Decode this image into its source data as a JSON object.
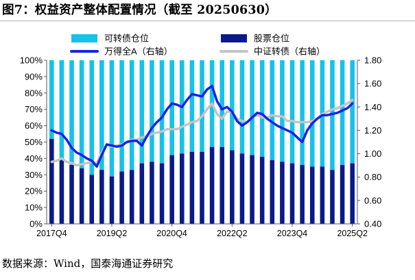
{
  "title": "图7：权益资产整体配置情况（截至 20250630）",
  "source": "数据来源：Wind，国泰海通证券研究",
  "colors": {
    "stock_bar": "#17c1ea",
    "bond_bar": "#0a1a8a",
    "wind_a_line": "#1524e6",
    "cb_index_line": "#c4c4c4",
    "axis": "#555555"
  },
  "chart_data": {
    "type": "bar",
    "stacked": true,
    "left_axis": {
      "ylim": [
        0,
        100
      ],
      "tick_labels": [
        "0%",
        "10%",
        "20%",
        "30%",
        "40%",
        "50%",
        "60%",
        "70%",
        "80%",
        "90%",
        "100%"
      ]
    },
    "right_axis": {
      "ylim": [
        0.4,
        1.8
      ],
      "tick_labels": [
        "0.40",
        "0.60",
        "0.80",
        "1.00",
        "1.20",
        "1.40",
        "1.60",
        "1.80"
      ]
    },
    "x_tick_labels": [
      "2017Q4",
      "2019Q2",
      "2020Q4",
      "2022Q2",
      "2023Q4",
      "2025Q2"
    ],
    "categories": [
      "2017Q4",
      "2018Q1",
      "2018Q2",
      "2018Q3",
      "2018Q4",
      "2019Q1",
      "2019Q2",
      "2019Q3",
      "2019Q4",
      "2020Q1",
      "2020Q2",
      "2020Q3",
      "2020Q4",
      "2021Q1",
      "2021Q2",
      "2021Q3",
      "2021Q4",
      "2022Q1",
      "2022Q2",
      "2022Q3",
      "2022Q4",
      "2023Q1",
      "2023Q2",
      "2023Q3",
      "2023Q4",
      "2024Q1",
      "2024Q2",
      "2024Q3",
      "2024Q4",
      "2025Q1",
      "2025Q2"
    ],
    "legend": [
      {
        "name": "可转债仓位",
        "kind": "bar"
      },
      {
        "name": "股票仓位",
        "kind": "bar"
      },
      {
        "name": "万得全A（右轴）",
        "kind": "line"
      },
      {
        "name": "中证转债（右轴）",
        "kind": "line"
      }
    ],
    "series": [
      {
        "name": "股票仓位",
        "axis": "left",
        "kind": "bar",
        "values": [
          52,
          40,
          36,
          34,
          30,
          33,
          29,
          32,
          33,
          37,
          38,
          37,
          42,
          43,
          44,
          44,
          47,
          47,
          45,
          43,
          42,
          41,
          39,
          38,
          37,
          36,
          35,
          35,
          33,
          36,
          37
        ]
      },
      {
        "name": "可转债仓位",
        "axis": "left",
        "kind": "bar",
        "values": [
          48,
          60,
          64,
          66,
          70,
          67,
          71,
          68,
          67,
          63,
          62,
          63,
          58,
          57,
          56,
          56,
          53,
          53,
          55,
          57,
          58,
          59,
          61,
          62,
          63,
          64,
          65,
          65,
          67,
          64,
          63
        ]
      },
      {
        "name": "万得全A（右轴）",
        "axis": "right",
        "kind": "line",
        "x": [
          0,
          0.5,
          1,
          1.5,
          2,
          2.5,
          3,
          3.5,
          4,
          4.5,
          5,
          5.5,
          6,
          6.5,
          7,
          7.5,
          8,
          8.5,
          9,
          9.5,
          10,
          10.5,
          11,
          11.5,
          12,
          12.5,
          13,
          13.5,
          14,
          14.5,
          15,
          15.5,
          16,
          16.5,
          17,
          17.5,
          18,
          18.5,
          19,
          19.5,
          20,
          20.5,
          21,
          21.5,
          22,
          22.5,
          23,
          23.5,
          24,
          24.5,
          25,
          25.5,
          26,
          26.5,
          27,
          27.5,
          28,
          28.5,
          29,
          29.5,
          30
        ],
        "values": [
          1.2,
          1.18,
          1.17,
          1.12,
          1.05,
          1.01,
          0.99,
          0.96,
          0.94,
          0.89,
          0.99,
          1.08,
          1.07,
          1.06,
          1.07,
          1.1,
          1.11,
          1.11,
          1.07,
          1.15,
          1.22,
          1.27,
          1.31,
          1.38,
          1.43,
          1.42,
          1.4,
          1.46,
          1.51,
          1.5,
          1.49,
          1.55,
          1.58,
          1.45,
          1.38,
          1.4,
          1.36,
          1.28,
          1.24,
          1.27,
          1.31,
          1.35,
          1.34,
          1.3,
          1.27,
          1.24,
          1.22,
          1.2,
          1.18,
          1.14,
          1.1,
          1.2,
          1.26,
          1.3,
          1.33,
          1.33,
          1.34,
          1.35,
          1.37,
          1.39,
          1.43
        ]
      },
      {
        "name": "中证转债（右轴）",
        "axis": "right",
        "kind": "line",
        "x": [
          0,
          0.5,
          1,
          1.5,
          2,
          2.5,
          3,
          3.5,
          4,
          4.5,
          5,
          5.5,
          6,
          6.5,
          7,
          7.5,
          8,
          8.5,
          9,
          9.5,
          10,
          10.5,
          11,
          11.5,
          12,
          12.5,
          13,
          13.5,
          14,
          14.5,
          15,
          15.5,
          16,
          16.5,
          17,
          17.5,
          18,
          18.5,
          19,
          19.5,
          20,
          20.5,
          21,
          21.5,
          22,
          22.5,
          23,
          23.5,
          24,
          24.5,
          25,
          25.5,
          26,
          26.5,
          27,
          27.5,
          28,
          28.5,
          29,
          29.5,
          30
        ],
        "values": [
          0.93,
          0.94,
          0.96,
          0.93,
          0.92,
          0.9,
          0.91,
          0.92,
          0.93,
          0.92,
          1.01,
          1.08,
          1.06,
          1.07,
          1.08,
          1.1,
          1.12,
          1.12,
          1.14,
          1.15,
          1.17,
          1.18,
          1.19,
          1.21,
          1.21,
          1.21,
          1.23,
          1.25,
          1.27,
          1.28,
          1.32,
          1.38,
          1.43,
          1.34,
          1.3,
          1.36,
          1.36,
          1.3,
          1.28,
          1.27,
          1.31,
          1.33,
          1.31,
          1.31,
          1.33,
          1.32,
          1.32,
          1.28,
          1.28,
          1.27,
          1.27,
          1.27,
          1.28,
          1.3,
          1.34,
          1.36,
          1.38,
          1.39,
          1.41,
          1.43,
          1.46
        ]
      }
    ]
  }
}
